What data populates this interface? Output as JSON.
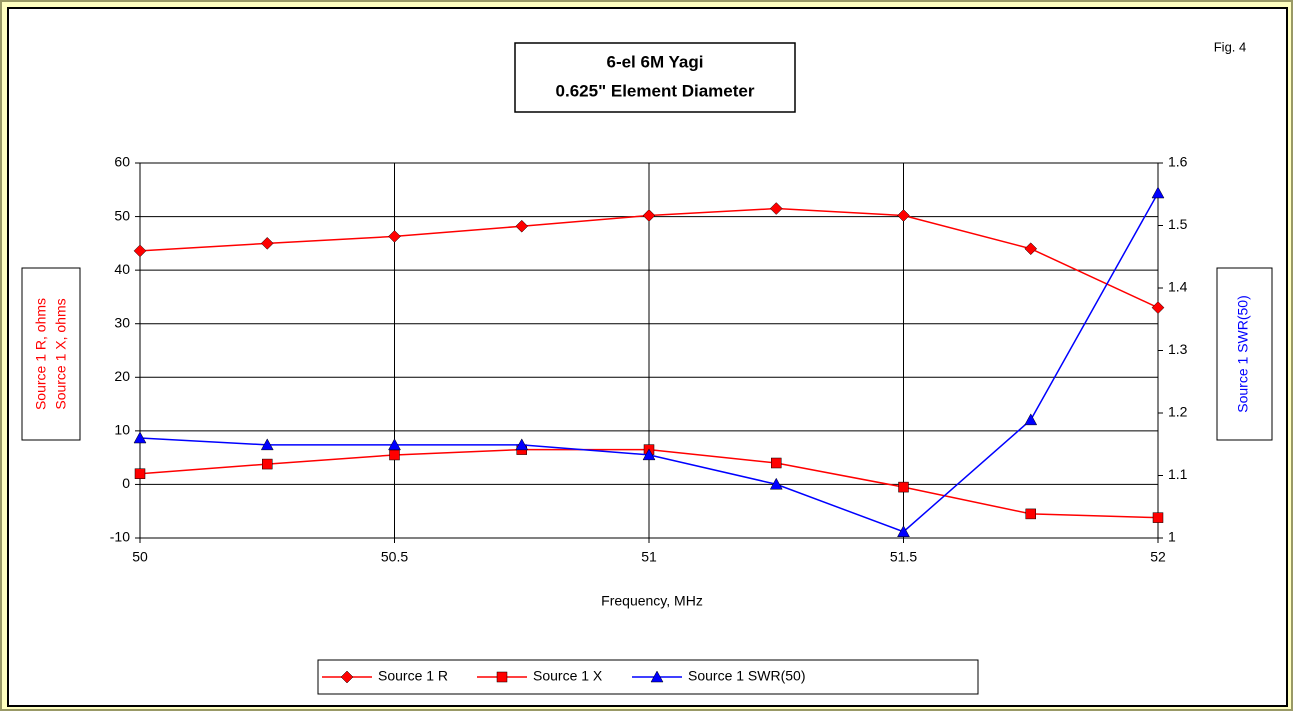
{
  "chart_data": {
    "type": "line",
    "title": "6-el 6M Yagi",
    "subtitle": "0.625\" Element Diameter",
    "annotation": "Fig. 4",
    "xlabel": "Frequency, MHz",
    "ylabel": [
      "Source 1 R, ohms",
      "Source 1 X, ohms"
    ],
    "y2label": "Source 1 SWR(50)",
    "x": [
      50,
      50.25,
      50.5,
      50.75,
      51,
      51.25,
      51.5,
      51.75,
      52
    ],
    "xlim": [
      50,
      52
    ],
    "xticks": [
      50,
      50.5,
      51,
      51.5,
      52
    ],
    "ylim": [
      -10,
      60
    ],
    "yticks": [
      -10,
      0,
      10,
      20,
      30,
      40,
      50,
      60
    ],
    "y2lim": [
      1,
      1.6
    ],
    "y2ticks": [
      1,
      1.1,
      1.2,
      1.3,
      1.4,
      1.5,
      1.6
    ],
    "grid": true,
    "series": [
      {
        "name": "Source 1 R",
        "color": "#ff0000",
        "marker": "diamond",
        "values": [
          43.6,
          45,
          46.3,
          48.2,
          50.2,
          51.5,
          50.2,
          44,
          33
        ]
      },
      {
        "name": "Source 1 X",
        "color": "#ff0000",
        "marker": "square",
        "values": [
          2,
          3.8,
          5.5,
          6.5,
          6.5,
          4,
          -0.5,
          -5.5,
          -6.2
        ]
      },
      {
        "name": "Source 1 SWR(50)",
        "color": "#0000ff",
        "marker": "triangle",
        "axis": "y2",
        "values": [
          1.16,
          1.149,
          1.149,
          1.149,
          1.133,
          1.086,
          1.01,
          1.189,
          1.552
        ]
      }
    ]
  }
}
